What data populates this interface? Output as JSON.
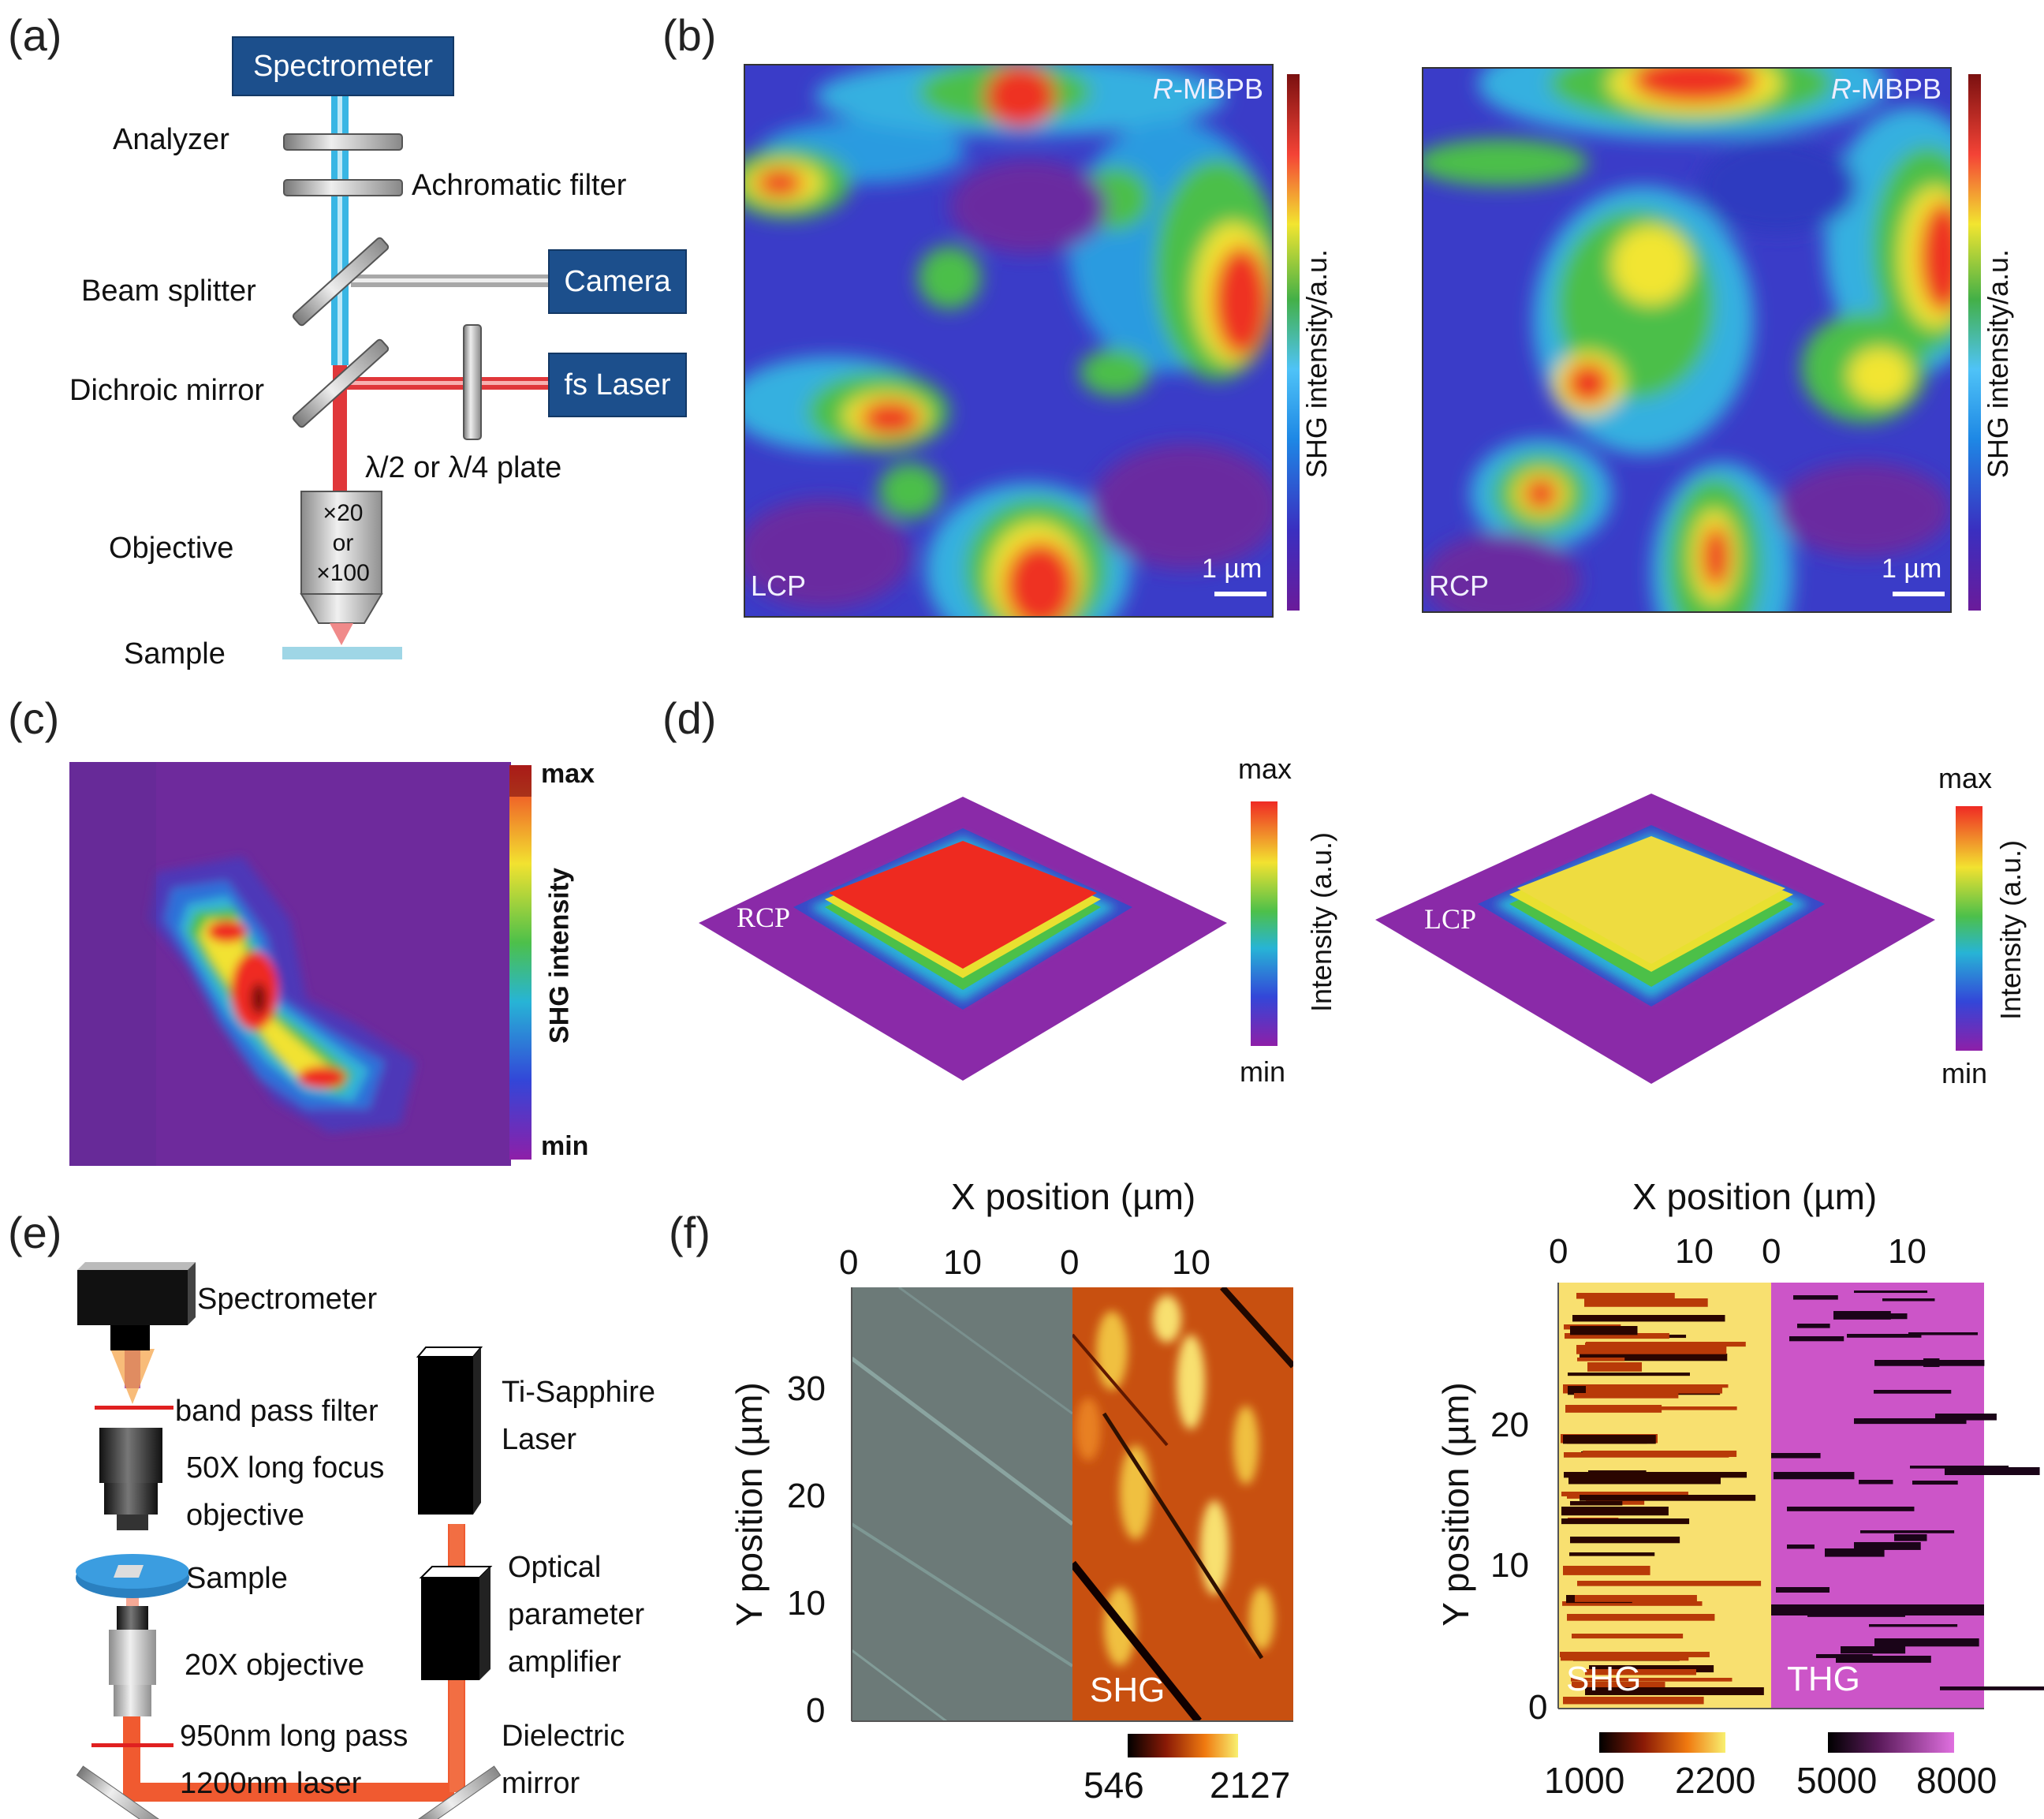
{
  "figure": {
    "panel_labels": {
      "a": "(a)",
      "b": "(b)",
      "c": "(c)",
      "d": "(d)",
      "e": "(e)",
      "f": "(f)"
    }
  },
  "panel_a": {
    "spectrometer": "Spectrometer",
    "analyzer": "Analyzer",
    "achromatic_filter": "Achromatic filter",
    "beam_splitter": "Beam splitter",
    "camera": "Camera",
    "dichroic_mirror": "Dichroic mirror",
    "fs_laser": "fs Laser",
    "plate": "λ/2 or λ/4 plate",
    "objective": "Objective",
    "objective_mag": [
      "×20",
      "or",
      "×100"
    ],
    "sample": "Sample"
  },
  "panel_b": {
    "maps": [
      {
        "compound_prefix": "R",
        "compound_suffix": "-MBPB",
        "polarization": "LCP",
        "scale": "1 µm"
      },
      {
        "compound_prefix": "R",
        "compound_suffix": "-MBPB",
        "polarization": "RCP",
        "scale": "1 µm"
      }
    ],
    "colorbar_label": "SHG intensity/a.u."
  },
  "panel_c": {
    "colorbar_label": "SHG intensity",
    "max": "max",
    "min": "min"
  },
  "panel_d": {
    "surfaces": [
      {
        "polarization": "RCP",
        "max": "max",
        "min": "min",
        "colorbar_label": "Intensity (a.u.)"
      },
      {
        "polarization": "LCP",
        "max": "max",
        "min": "min",
        "colorbar_label": "Intensity (a.u.)"
      }
    ]
  },
  "panel_e": {
    "spectrometer": "Spectrometer",
    "band_pass": "band pass filter",
    "objective50_l1": "50X long focus",
    "objective50_l2": "objective",
    "sample": "Sample",
    "objective20": "20X objective",
    "long_pass": "950nm long pass",
    "laser1200": "1200nm laser",
    "ti_sapphire_l1": "Ti-Sapphire",
    "ti_sapphire_l2": "Laser",
    "opa_l1": "Optical",
    "opa_l2": "parameter",
    "opa_l3": "amplifier",
    "mirror_l1": "Dielectric",
    "mirror_l2": "mirror"
  },
  "panel_f": {
    "left": {
      "x_label": "X position (µm)",
      "y_label": "Y position (µm)",
      "x_ticks_a": [
        "0",
        "10"
      ],
      "x_ticks_b": [
        "0",
        "10"
      ],
      "y_ticks": [
        "0",
        "10",
        "20",
        "30"
      ],
      "map_label": "SHG",
      "cbar_min": "546",
      "cbar_max": "2127"
    },
    "right": {
      "x_label": "X position (µm)",
      "y_label": "Y position (µm)",
      "x_ticks_a": [
        "0",
        "10"
      ],
      "x_ticks_b": [
        "0",
        "10"
      ],
      "y_ticks": [
        "0",
        "10",
        "20"
      ],
      "label_a": "SHG",
      "label_b": "THG",
      "cbar1_min": "1000",
      "cbar1_max": "2200",
      "cbar2_min": "5000",
      "cbar2_max": "8000"
    }
  },
  "colors": {
    "box_blue": "#1c4f8c",
    "beam_red": "#e0373a",
    "beam_cyan": "#38b6e4",
    "sample_blue": "#9fd6e6"
  }
}
